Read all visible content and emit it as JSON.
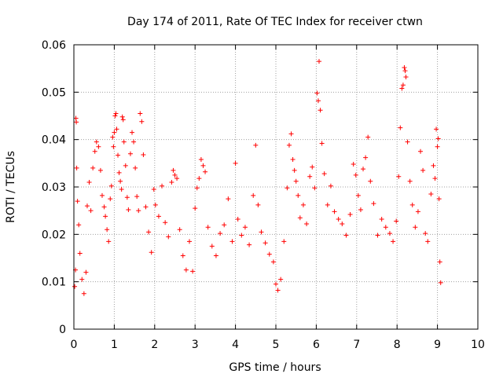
{
  "chart_data": {
    "type": "scatter",
    "title": "Day 174 of 2011, Rate Of TEC Index for receiver ctwn",
    "xlabel": "GPS time / hours",
    "ylabel": "ROTI / TECUs",
    "xlim": [
      0,
      10
    ],
    "ylim": [
      0,
      0.06
    ],
    "xticks": [
      "0",
      "1",
      "2",
      "3",
      "4",
      "5",
      "6",
      "7",
      "8",
      "9",
      "10"
    ],
    "yticks": [
      "0",
      "0.01",
      "0.02",
      "0.03",
      "0.04",
      "0.05",
      "0.06"
    ],
    "grid": true,
    "marker": "plus",
    "series": [
      {
        "name": "ROTI",
        "color": "#ff0000",
        "points": [
          [
            0.02,
            0.009
          ],
          [
            0.04,
            0.0125
          ],
          [
            0.05,
            0.0445
          ],
          [
            0.06,
            0.0437
          ],
          [
            0.07,
            0.034
          ],
          [
            0.09,
            0.027
          ],
          [
            0.12,
            0.022
          ],
          [
            0.15,
            0.016
          ],
          [
            0.2,
            0.0105
          ],
          [
            0.25,
            0.0075
          ],
          [
            0.3,
            0.012
          ],
          [
            0.33,
            0.026
          ],
          [
            0.38,
            0.031
          ],
          [
            0.42,
            0.025
          ],
          [
            0.47,
            0.034
          ],
          [
            0.52,
            0.0375
          ],
          [
            0.56,
            0.0395
          ],
          [
            0.61,
            0.0385
          ],
          [
            0.66,
            0.0335
          ],
          [
            0.7,
            0.0282
          ],
          [
            0.75,
            0.0258
          ],
          [
            0.78,
            0.0238
          ],
          [
            0.82,
            0.021
          ],
          [
            0.86,
            0.0185
          ],
          [
            0.9,
            0.0275
          ],
          [
            0.93,
            0.0302
          ],
          [
            0.96,
            0.0405
          ],
          [
            0.98,
            0.0385
          ],
          [
            1.0,
            0.0415
          ],
          [
            1.02,
            0.045
          ],
          [
            1.04,
            0.0455
          ],
          [
            1.06,
            0.0422
          ],
          [
            1.09,
            0.0367
          ],
          [
            1.12,
            0.033
          ],
          [
            1.15,
            0.0312
          ],
          [
            1.18,
            0.0295
          ],
          [
            1.2,
            0.0448
          ],
          [
            1.22,
            0.0442
          ],
          [
            1.24,
            0.0395
          ],
          [
            1.28,
            0.0345
          ],
          [
            1.32,
            0.0278
          ],
          [
            1.35,
            0.0252
          ],
          [
            1.4,
            0.037
          ],
          [
            1.44,
            0.0415
          ],
          [
            1.48,
            0.0395
          ],
          [
            1.52,
            0.034
          ],
          [
            1.56,
            0.028
          ],
          [
            1.6,
            0.025
          ],
          [
            1.64,
            0.0455
          ],
          [
            1.68,
            0.0438
          ],
          [
            1.72,
            0.0368
          ],
          [
            1.78,
            0.0258
          ],
          [
            1.85,
            0.0205
          ],
          [
            1.92,
            0.0162
          ],
          [
            1.98,
            0.0295
          ],
          [
            2.02,
            0.0262
          ],
          [
            2.1,
            0.0238
          ],
          [
            2.18,
            0.0302
          ],
          [
            2.26,
            0.0225
          ],
          [
            2.34,
            0.0195
          ],
          [
            2.42,
            0.031
          ],
          [
            2.46,
            0.0335
          ],
          [
            2.5,
            0.0325
          ],
          [
            2.55,
            0.0318
          ],
          [
            2.62,
            0.021
          ],
          [
            2.7,
            0.0155
          ],
          [
            2.78,
            0.0125
          ],
          [
            2.86,
            0.0185
          ],
          [
            2.94,
            0.0122
          ],
          [
            3.0,
            0.0255
          ],
          [
            3.05,
            0.0298
          ],
          [
            3.1,
            0.0318
          ],
          [
            3.15,
            0.0358
          ],
          [
            3.2,
            0.0345
          ],
          [
            3.25,
            0.0332
          ],
          [
            3.32,
            0.0215
          ],
          [
            3.42,
            0.0175
          ],
          [
            3.52,
            0.0155
          ],
          [
            3.62,
            0.0202
          ],
          [
            3.72,
            0.022
          ],
          [
            3.82,
            0.0275
          ],
          [
            3.92,
            0.0185
          ],
          [
            4.0,
            0.035
          ],
          [
            4.06,
            0.0232
          ],
          [
            4.15,
            0.0198
          ],
          [
            4.24,
            0.0215
          ],
          [
            4.34,
            0.0178
          ],
          [
            4.44,
            0.0282
          ],
          [
            4.5,
            0.0388
          ],
          [
            4.56,
            0.0262
          ],
          [
            4.64,
            0.0205
          ],
          [
            4.74,
            0.0182
          ],
          [
            4.84,
            0.0158
          ],
          [
            4.94,
            0.0142
          ],
          [
            5.0,
            0.0095
          ],
          [
            5.05,
            0.0082
          ],
          [
            5.12,
            0.0105
          ],
          [
            5.2,
            0.0185
          ],
          [
            5.28,
            0.0298
          ],
          [
            5.33,
            0.0388
          ],
          [
            5.38,
            0.0412
          ],
          [
            5.42,
            0.0358
          ],
          [
            5.46,
            0.0335
          ],
          [
            5.5,
            0.0312
          ],
          [
            5.55,
            0.0282
          ],
          [
            5.6,
            0.0235
          ],
          [
            5.68,
            0.0262
          ],
          [
            5.76,
            0.0222
          ],
          [
            5.84,
            0.0322
          ],
          [
            5.9,
            0.0342
          ],
          [
            5.96,
            0.0298
          ],
          [
            6.02,
            0.0498
          ],
          [
            6.05,
            0.0482
          ],
          [
            6.07,
            0.0565
          ],
          [
            6.1,
            0.0462
          ],
          [
            6.14,
            0.0392
          ],
          [
            6.2,
            0.0328
          ],
          [
            6.28,
            0.0262
          ],
          [
            6.36,
            0.0302
          ],
          [
            6.45,
            0.0248
          ],
          [
            6.55,
            0.0232
          ],
          [
            6.64,
            0.0222
          ],
          [
            6.74,
            0.0198
          ],
          [
            6.84,
            0.0242
          ],
          [
            6.92,
            0.0348
          ],
          [
            6.98,
            0.0325
          ],
          [
            7.04,
            0.0282
          ],
          [
            7.1,
            0.0252
          ],
          [
            7.16,
            0.0338
          ],
          [
            7.22,
            0.0362
          ],
          [
            7.28,
            0.0405
          ],
          [
            7.34,
            0.0312
          ],
          [
            7.42,
            0.0265
          ],
          [
            7.52,
            0.0198
          ],
          [
            7.62,
            0.0232
          ],
          [
            7.72,
            0.0215
          ],
          [
            7.82,
            0.0202
          ],
          [
            7.9,
            0.0185
          ],
          [
            7.98,
            0.0228
          ],
          [
            8.04,
            0.0322
          ],
          [
            8.08,
            0.0425
          ],
          [
            8.12,
            0.0508
          ],
          [
            8.15,
            0.0515
          ],
          [
            8.18,
            0.0552
          ],
          [
            8.2,
            0.0545
          ],
          [
            8.22,
            0.0532
          ],
          [
            8.26,
            0.0395
          ],
          [
            8.32,
            0.0312
          ],
          [
            8.38,
            0.0262
          ],
          [
            8.45,
            0.0215
          ],
          [
            8.52,
            0.0248
          ],
          [
            8.58,
            0.0375
          ],
          [
            8.64,
            0.0335
          ],
          [
            8.7,
            0.0202
          ],
          [
            8.76,
            0.0185
          ],
          [
            8.84,
            0.0285
          ],
          [
            8.9,
            0.0345
          ],
          [
            8.94,
            0.0318
          ],
          [
            8.97,
            0.0422
          ],
          [
            9.0,
            0.0385
          ],
          [
            9.02,
            0.0402
          ],
          [
            9.04,
            0.0275
          ],
          [
            9.06,
            0.0142
          ],
          [
            9.08,
            0.0098
          ]
        ]
      }
    ]
  }
}
